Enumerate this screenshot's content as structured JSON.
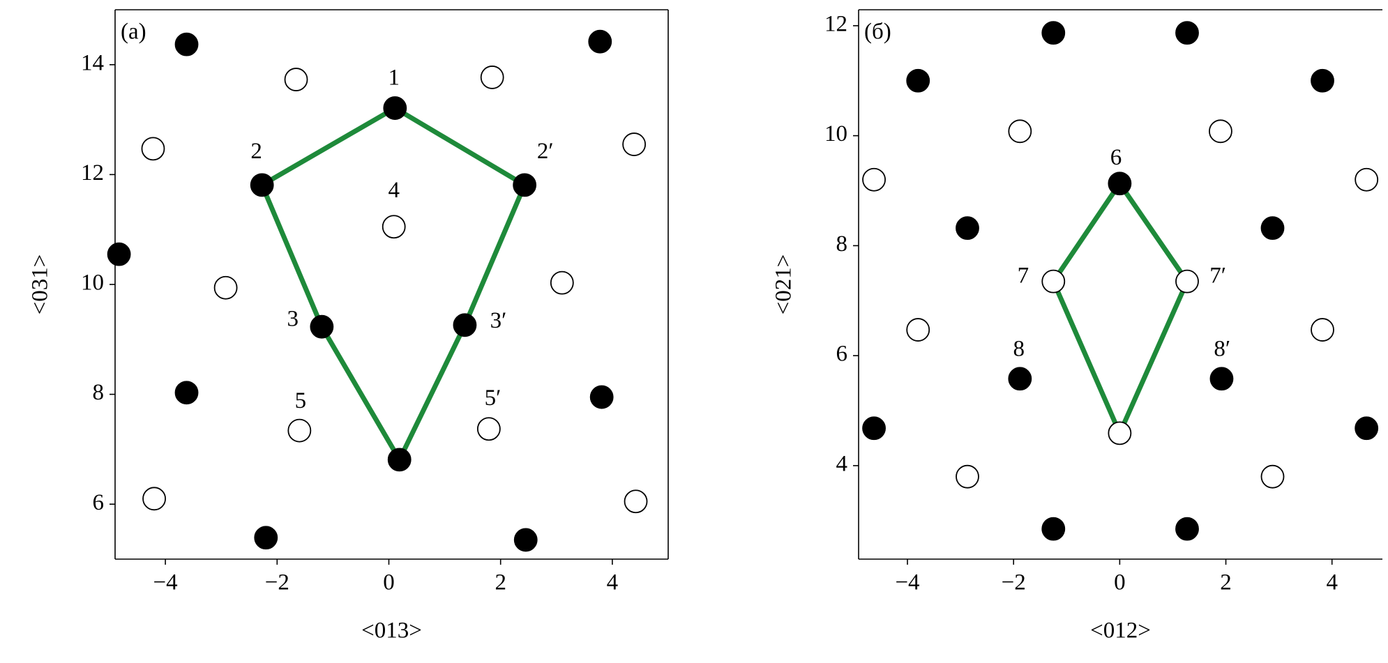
{
  "chart_data": [
    {
      "type": "scatter",
      "panel_label": "(a)",
      "xlabel": "<013>",
      "ylabel": "<031>",
      "xlim": [
        -4.9,
        5.0
      ],
      "ylim": [
        5.0,
        15.0
      ],
      "xticks": [
        {
          "value": -4,
          "label": "−4"
        },
        {
          "value": -2,
          "label": "−2"
        },
        0,
        2,
        4
      ],
      "yticks": [
        6,
        8,
        10,
        12,
        14
      ],
      "series": [
        {
          "color": "#000000",
          "facecolor": "#000000",
          "x": [
            -3.62,
            3.78,
            0.11,
            -2.27,
            2.43,
            -4.83,
            -1.2,
            1.36,
            -3.62,
            3.81,
            0.19,
            -2.2,
            2.45
          ],
          "y": [
            14.37,
            14.42,
            13.21,
            11.81,
            11.81,
            10.55,
            9.23,
            9.26,
            8.03,
            7.95,
            6.81,
            5.39,
            5.35
          ]
        },
        {
          "color": "#000000",
          "facecolor": "#ffffff",
          "x": [
            -1.66,
            1.85,
            -4.22,
            4.39,
            0.09,
            -2.92,
            3.1,
            -1.6,
            1.79,
            -4.2,
            4.42
          ],
          "y": [
            13.73,
            13.77,
            12.47,
            12.55,
            11.05,
            9.94,
            10.03,
            7.34,
            7.37,
            6.1,
            6.05
          ]
        }
      ],
      "polygon": {
        "color": "#1e8a3a",
        "x": [
          -2.27,
          0.11,
          2.43,
          1.36,
          0.19,
          -1.2,
          -2.27
        ],
        "y": [
          11.81,
          13.21,
          11.81,
          9.26,
          6.81,
          9.23,
          11.81
        ]
      },
      "annotations": [
        {
          "text": "1",
          "x": 0.09,
          "y": 13.73
        },
        {
          "text": "2",
          "x": -2.37,
          "y": 12.39
        },
        {
          "text": "2′",
          "x": 2.8,
          "y": 12.39
        },
        {
          "text": "3",
          "x": -1.72,
          "y": 9.34
        },
        {
          "text": "3′",
          "x": 1.96,
          "y": 9.31
        },
        {
          "text": "4",
          "x": 0.09,
          "y": 11.68
        },
        {
          "text": "5",
          "x": -1.58,
          "y": 7.85
        },
        {
          "text": "5′",
          "x": 1.86,
          "y": 7.9
        }
      ]
    },
    {
      "type": "scatter",
      "panel_label": "(б)",
      "xlabel": "<012>",
      "ylabel": "<021>",
      "xlim": [
        -4.92,
        4.95
      ],
      "ylim": [
        2.3,
        12.29
      ],
      "xticks": [
        {
          "value": -4,
          "label": "−4"
        },
        {
          "value": -2,
          "label": "−2"
        },
        0,
        2,
        4
      ],
      "yticks": [
        4,
        6,
        8,
        10,
        12
      ],
      "series": [
        {
          "color": "#000000",
          "facecolor": "#000000",
          "x": [
            -1.25,
            1.27,
            -3.8,
            3.82,
            0,
            -2.87,
            2.88,
            -1.88,
            1.92,
            -4.63,
            4.65,
            -1.25,
            1.27
          ],
          "y": [
            11.87,
            11.87,
            11.0,
            11.0,
            9.13,
            8.32,
            8.32,
            5.58,
            5.58,
            4.68,
            4.68,
            2.85,
            2.85
          ]
        },
        {
          "color": "#000000",
          "facecolor": "#ffffff",
          "x": [
            -1.88,
            1.9,
            -4.63,
            4.65,
            -1.25,
            1.27,
            -3.8,
            3.82,
            0,
            -2.87,
            2.88
          ],
          "y": [
            10.08,
            10.08,
            9.2,
            9.2,
            7.35,
            7.35,
            6.47,
            6.47,
            4.59,
            3.8,
            3.8
          ]
        }
      ],
      "polygon": {
        "color": "#1e8a3a",
        "x": [
          0,
          1.27,
          0,
          -1.25,
          0
        ],
        "y": [
          9.13,
          7.35,
          4.59,
          7.35,
          9.13
        ]
      },
      "annotations": [
        {
          "text": "6",
          "x": -0.07,
          "y": 9.57
        },
        {
          "text": "7",
          "x": -1.82,
          "y": 7.42
        },
        {
          "text": "7′",
          "x": 1.85,
          "y": 7.42
        },
        {
          "text": "8",
          "x": -1.9,
          "y": 6.09
        },
        {
          "text": "8′",
          "x": 1.93,
          "y": 6.09
        }
      ]
    }
  ]
}
